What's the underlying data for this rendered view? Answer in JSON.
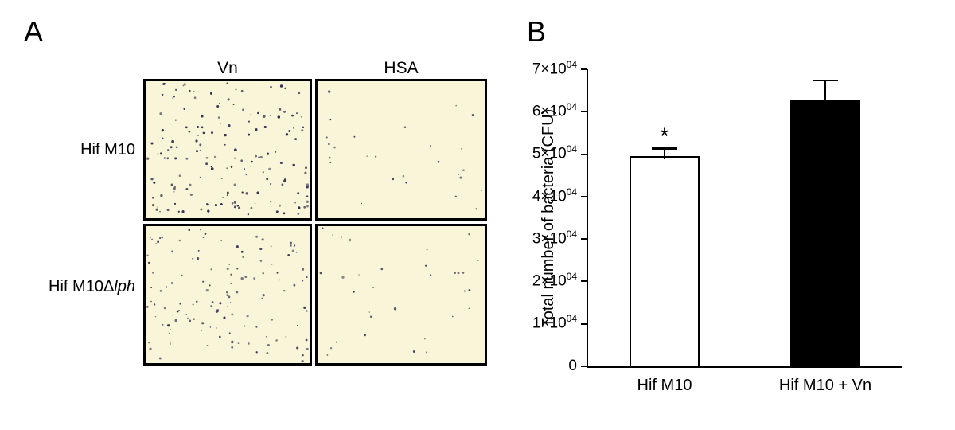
{
  "panel_a": {
    "label": "A",
    "col_headers": [
      "Vn",
      "HSA"
    ],
    "row_labels": [
      {
        "text": "Hif M10",
        "italic": ""
      },
      {
        "text": "Hif M10Δ",
        "italic": "lph"
      }
    ],
    "bg_color": "#f9f5d8",
    "dot_color": "#3a3350",
    "images": [
      {
        "condition": "Hif M10 + Vn",
        "density": "high",
        "dot_count": 340
      },
      {
        "condition": "Hif M10 + HSA",
        "density": "low",
        "dot_count": 26
      },
      {
        "condition": "Hif M10Δlph + Vn",
        "density": "medium",
        "dot_count": 130
      },
      {
        "condition": "Hif M10Δlph + HSA",
        "density": "low",
        "dot_count": 32
      }
    ]
  },
  "panel_b": {
    "label": "B"
  },
  "chart_data": {
    "type": "bar",
    "title": "",
    "xlabel": "",
    "ylabel": "Total number of bacteria (CFU)",
    "ylim": [
      0,
      70000
    ],
    "grid": false,
    "legend": "none",
    "categories": [
      "Hif M10",
      "Hif M10 + Vn"
    ],
    "values": [
      50000,
      63000
    ],
    "bars": [
      {
        "category": "Hif M10",
        "value": 50000,
        "error": 1500,
        "fill": "#ffffff",
        "annotation": "*"
      },
      {
        "category": "Hif M10 + Vn",
        "value": 63000,
        "error": 4500,
        "fill": "#000000",
        "annotation": ""
      }
    ],
    "yticks": [
      {
        "value": 0,
        "label": "0",
        "sup": ""
      },
      {
        "value": 10000,
        "label": "1×10",
        "sup": "04"
      },
      {
        "value": 20000,
        "label": "2×10",
        "sup": "04"
      },
      {
        "value": 30000,
        "label": "3×10",
        "sup": "04"
      },
      {
        "value": 40000,
        "label": "4×10",
        "sup": "04"
      },
      {
        "value": 50000,
        "label": "5×10",
        "sup": "04"
      },
      {
        "value": 60000,
        "label": "6×10",
        "sup": "04"
      },
      {
        "value": 70000,
        "label": "7×10",
        "sup": "04"
      }
    ]
  }
}
